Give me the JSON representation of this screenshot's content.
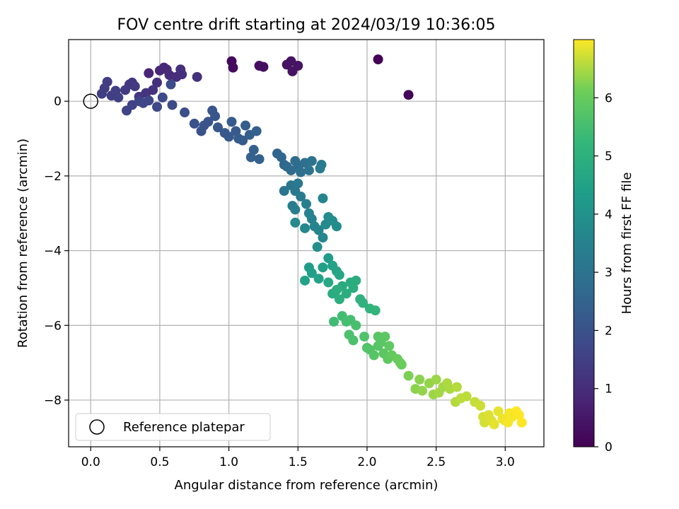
{
  "chart_data": {
    "type": "scatter",
    "title": "FOV centre drift starting at 2024/03/19 10:36:05",
    "xlabel": "Angular distance from reference (arcmin)",
    "ylabel": "Rotation from reference (arcmin)",
    "xlim": [
      -0.16,
      3.28
    ],
    "ylim": [
      -9.25,
      1.65
    ],
    "x_ticks": [
      0.0,
      0.5,
      1.0,
      1.5,
      2.0,
      2.5,
      3.0
    ],
    "x_tick_labels": [
      "0.0",
      "0.5",
      "1.0",
      "1.5",
      "2.0",
      "2.5",
      "3.0"
    ],
    "y_ticks": [
      0,
      -2,
      -4,
      -6,
      -8
    ],
    "y_tick_labels": [
      "0",
      "−2",
      "−4",
      "−6",
      "−8"
    ],
    "grid": true,
    "colormap": "viridis",
    "colorbar": {
      "label": "Hours from first FF file",
      "range": [
        0,
        7.0
      ],
      "ticks": [
        0,
        1,
        2,
        3,
        4,
        5,
        6
      ],
      "tick_labels": [
        "0",
        "1",
        "2",
        "3",
        "4",
        "5",
        "6"
      ]
    },
    "legend": {
      "position": "lower left",
      "entries": [
        {
          "label": "Reference platepar",
          "marker": "open circle"
        }
      ]
    },
    "reference_point": {
      "x": 0.0,
      "y": 0.0
    },
    "points": [
      {
        "x": 2.08,
        "y": 1.12,
        "h": 0.05
      },
      {
        "x": 2.3,
        "y": 0.17,
        "h": 0.1
      },
      {
        "x": 1.02,
        "y": 1.07,
        "h": 0.2
      },
      {
        "x": 1.03,
        "y": 0.9,
        "h": 0.25
      },
      {
        "x": 1.22,
        "y": 0.95,
        "h": 0.3
      },
      {
        "x": 1.25,
        "y": 0.92,
        "h": 0.32
      },
      {
        "x": 1.42,
        "y": 0.98,
        "h": 0.35
      },
      {
        "x": 1.45,
        "y": 1.07,
        "h": 0.38
      },
      {
        "x": 1.46,
        "y": 0.8,
        "h": 0.4
      },
      {
        "x": 1.5,
        "y": 0.95,
        "h": 0.42
      },
      {
        "x": 0.42,
        "y": 0.75,
        "h": 0.8
      },
      {
        "x": 0.5,
        "y": 0.82,
        "h": 0.85
      },
      {
        "x": 0.53,
        "y": 0.9,
        "h": 0.9
      },
      {
        "x": 0.55,
        "y": 0.85,
        "h": 0.9
      },
      {
        "x": 0.57,
        "y": 0.7,
        "h": 0.95
      },
      {
        "x": 0.62,
        "y": 0.65,
        "h": 1.0
      },
      {
        "x": 0.65,
        "y": 0.85,
        "h": 1.05
      },
      {
        "x": 0.66,
        "y": 0.72,
        "h": 1.1
      },
      {
        "x": 0.77,
        "y": 0.65,
        "h": 1.15
      },
      {
        "x": 0.48,
        "y": 0.5,
        "h": 1.1
      },
      {
        "x": 0.45,
        "y": 0.3,
        "h": 1.2
      },
      {
        "x": 0.4,
        "y": 0.22,
        "h": 1.2
      },
      {
        "x": 0.35,
        "y": 0.12,
        "h": 1.25
      },
      {
        "x": 0.3,
        "y": 0.5,
        "h": 1.3
      },
      {
        "x": 0.28,
        "y": 0.45,
        "h": 1.3
      },
      {
        "x": 0.32,
        "y": 0.4,
        "h": 1.35
      },
      {
        "x": 0.25,
        "y": 0.3,
        "h": 1.35
      },
      {
        "x": 0.12,
        "y": 0.52,
        "h": 1.4
      },
      {
        "x": 0.1,
        "y": 0.35,
        "h": 1.4
      },
      {
        "x": 0.08,
        "y": 0.2,
        "h": 1.45
      },
      {
        "x": 0.15,
        "y": 0.15,
        "h": 1.45
      },
      {
        "x": 0.2,
        "y": 0.1,
        "h": 1.5
      },
      {
        "x": 0.18,
        "y": 0.28,
        "h": 1.5
      },
      {
        "x": 0.26,
        "y": -0.25,
        "h": 1.6
      },
      {
        "x": 0.3,
        "y": -0.1,
        "h": 1.6
      },
      {
        "x": 0.35,
        "y": 0.0,
        "h": 1.65
      },
      {
        "x": 0.38,
        "y": -0.05,
        "h": 1.7
      },
      {
        "x": 0.42,
        "y": 0.02,
        "h": 1.7
      },
      {
        "x": 0.48,
        "y": -0.15,
        "h": 1.75
      },
      {
        "x": 0.52,
        "y": 0.1,
        "h": 1.75
      },
      {
        "x": 0.59,
        "y": -0.1,
        "h": 1.8
      },
      {
        "x": 0.58,
        "y": 0.45,
        "h": 1.8
      },
      {
        "x": 0.68,
        "y": -0.3,
        "h": 1.9
      },
      {
        "x": 0.75,
        "y": -0.6,
        "h": 2.0
      },
      {
        "x": 0.8,
        "y": -0.8,
        "h": 2.0
      },
      {
        "x": 0.82,
        "y": -0.65,
        "h": 2.05
      },
      {
        "x": 0.85,
        "y": -0.55,
        "h": 2.05
      },
      {
        "x": 0.88,
        "y": -0.25,
        "h": 2.1
      },
      {
        "x": 0.9,
        "y": -0.4,
        "h": 2.1
      },
      {
        "x": 0.92,
        "y": -0.7,
        "h": 2.15
      },
      {
        "x": 0.97,
        "y": -0.85,
        "h": 2.2
      },
      {
        "x": 1.0,
        "y": -0.95,
        "h": 2.2
      },
      {
        "x": 1.02,
        "y": -0.55,
        "h": 2.25
      },
      {
        "x": 1.05,
        "y": -0.8,
        "h": 2.25
      },
      {
        "x": 1.07,
        "y": -1.0,
        "h": 2.3
      },
      {
        "x": 1.1,
        "y": -1.05,
        "h": 2.3
      },
      {
        "x": 1.12,
        "y": -0.65,
        "h": 2.35
      },
      {
        "x": 1.15,
        "y": -0.9,
        "h": 2.35
      },
      {
        "x": 1.18,
        "y": -1.3,
        "h": 2.4
      },
      {
        "x": 1.2,
        "y": -0.8,
        "h": 2.4
      },
      {
        "x": 1.22,
        "y": -1.55,
        "h": 2.45
      },
      {
        "x": 1.16,
        "y": -1.5,
        "h": 2.45
      },
      {
        "x": 1.35,
        "y": -1.4,
        "h": 2.55
      },
      {
        "x": 1.38,
        "y": -1.5,
        "h": 2.6
      },
      {
        "x": 1.4,
        "y": -1.7,
        "h": 2.65
      },
      {
        "x": 1.42,
        "y": -1.75,
        "h": 2.7
      },
      {
        "x": 1.45,
        "y": -1.85,
        "h": 2.75
      },
      {
        "x": 1.48,
        "y": -1.6,
        "h": 2.8
      },
      {
        "x": 1.5,
        "y": -1.75,
        "h": 2.8
      },
      {
        "x": 1.52,
        "y": -1.9,
        "h": 2.85
      },
      {
        "x": 1.55,
        "y": -1.65,
        "h": 2.9
      },
      {
        "x": 1.58,
        "y": -1.85,
        "h": 2.95
      },
      {
        "x": 1.6,
        "y": -1.6,
        "h": 3.0
      },
      {
        "x": 1.4,
        "y": -2.4,
        "h": 3.05
      },
      {
        "x": 1.45,
        "y": -2.25,
        "h": 3.1
      },
      {
        "x": 1.48,
        "y": -2.4,
        "h": 3.15
      },
      {
        "x": 1.5,
        "y": -2.2,
        "h": 3.2
      },
      {
        "x": 1.52,
        "y": -2.55,
        "h": 3.25
      },
      {
        "x": 1.46,
        "y": -2.8,
        "h": 3.3
      },
      {
        "x": 1.48,
        "y": -2.9,
        "h": 3.35
      },
      {
        "x": 1.56,
        "y": -2.75,
        "h": 3.4
      },
      {
        "x": 1.58,
        "y": -3.0,
        "h": 3.45
      },
      {
        "x": 1.6,
        "y": -3.15,
        "h": 3.5
      },
      {
        "x": 1.62,
        "y": -3.35,
        "h": 3.55
      },
      {
        "x": 1.65,
        "y": -3.45,
        "h": 3.6
      },
      {
        "x": 1.68,
        "y": -3.65,
        "h": 3.65
      },
      {
        "x": 1.48,
        "y": -3.25,
        "h": 3.7
      },
      {
        "x": 1.55,
        "y": -3.4,
        "h": 3.7
      },
      {
        "x": 1.7,
        "y": -3.3,
        "h": 3.75
      },
      {
        "x": 1.72,
        "y": -3.1,
        "h": 3.8
      },
      {
        "x": 1.75,
        "y": -3.2,
        "h": 3.8
      },
      {
        "x": 1.78,
        "y": -3.35,
        "h": 3.85
      },
      {
        "x": 1.68,
        "y": -2.6,
        "h": 3.6
      },
      {
        "x": 1.67,
        "y": -1.7,
        "h": 3.2
      },
      {
        "x": 1.66,
        "y": -1.8,
        "h": 3.25
      },
      {
        "x": 1.64,
        "y": -3.9,
        "h": 3.9
      },
      {
        "x": 1.58,
        "y": -4.45,
        "h": 4.3
      },
      {
        "x": 1.6,
        "y": -4.6,
        "h": 4.4
      },
      {
        "x": 1.55,
        "y": -4.8,
        "h": 4.5
      },
      {
        "x": 1.65,
        "y": -4.75,
        "h": 4.5
      },
      {
        "x": 1.68,
        "y": -4.45,
        "h": 4.45
      },
      {
        "x": 1.72,
        "y": -4.2,
        "h": 4.35
      },
      {
        "x": 1.75,
        "y": -4.4,
        "h": 4.5
      },
      {
        "x": 1.78,
        "y": -4.55,
        "h": 4.6
      },
      {
        "x": 1.8,
        "y": -4.65,
        "h": 4.65
      },
      {
        "x": 1.82,
        "y": -4.95,
        "h": 4.8
      },
      {
        "x": 1.85,
        "y": -5.15,
        "h": 4.9
      },
      {
        "x": 1.88,
        "y": -4.85,
        "h": 4.85
      },
      {
        "x": 1.9,
        "y": -5.0,
        "h": 4.9
      },
      {
        "x": 1.92,
        "y": -4.8,
        "h": 4.9
      },
      {
        "x": 1.95,
        "y": -5.3,
        "h": 5.0
      },
      {
        "x": 1.97,
        "y": -5.4,
        "h": 5.05
      },
      {
        "x": 2.02,
        "y": -5.55,
        "h": 5.1
      },
      {
        "x": 2.06,
        "y": -5.6,
        "h": 5.15
      },
      {
        "x": 1.72,
        "y": -4.85,
        "h": 4.7
      },
      {
        "x": 1.75,
        "y": -5.15,
        "h": 4.85
      },
      {
        "x": 1.78,
        "y": -5.05,
        "h": 4.9
      },
      {
        "x": 1.8,
        "y": -5.3,
        "h": 4.95
      },
      {
        "x": 1.76,
        "y": -5.9,
        "h": 5.4
      },
      {
        "x": 1.82,
        "y": -5.75,
        "h": 5.45
      },
      {
        "x": 1.85,
        "y": -5.9,
        "h": 5.5
      },
      {
        "x": 1.88,
        "y": -5.85,
        "h": 5.5
      },
      {
        "x": 1.92,
        "y": -6.0,
        "h": 5.55
      },
      {
        "x": 1.87,
        "y": -6.25,
        "h": 5.6
      },
      {
        "x": 1.9,
        "y": -6.4,
        "h": 5.6
      },
      {
        "x": 1.98,
        "y": -6.3,
        "h": 5.65
      },
      {
        "x": 2.0,
        "y": -6.6,
        "h": 5.7
      },
      {
        "x": 2.02,
        "y": -6.65,
        "h": 5.7
      },
      {
        "x": 2.05,
        "y": -6.8,
        "h": 5.75
      },
      {
        "x": 2.08,
        "y": -6.55,
        "h": 5.75
      },
      {
        "x": 2.1,
        "y": -6.45,
        "h": 5.8
      },
      {
        "x": 2.08,
        "y": -6.3,
        "h": 5.8
      },
      {
        "x": 2.12,
        "y": -6.75,
        "h": 5.85
      },
      {
        "x": 2.15,
        "y": -6.9,
        "h": 5.9
      },
      {
        "x": 2.13,
        "y": -6.3,
        "h": 5.85
      },
      {
        "x": 2.16,
        "y": -6.55,
        "h": 5.9
      },
      {
        "x": 2.18,
        "y": -6.8,
        "h": 5.95
      },
      {
        "x": 2.22,
        "y": -6.9,
        "h": 6.0
      },
      {
        "x": 2.25,
        "y": -7.05,
        "h": 6.05
      },
      {
        "x": 2.24,
        "y": -7.0,
        "h": 6.05
      },
      {
        "x": 2.3,
        "y": -7.35,
        "h": 6.2
      },
      {
        "x": 2.35,
        "y": -7.7,
        "h": 6.3
      },
      {
        "x": 2.38,
        "y": -7.45,
        "h": 6.3
      },
      {
        "x": 2.4,
        "y": -7.75,
        "h": 6.35
      },
      {
        "x": 2.45,
        "y": -7.55,
        "h": 6.35
      },
      {
        "x": 2.48,
        "y": -7.85,
        "h": 6.4
      },
      {
        "x": 2.5,
        "y": -7.45,
        "h": 6.4
      },
      {
        "x": 2.52,
        "y": -7.8,
        "h": 6.45
      },
      {
        "x": 2.55,
        "y": -7.65,
        "h": 6.45
      },
      {
        "x": 2.58,
        "y": -7.55,
        "h": 6.5
      },
      {
        "x": 2.6,
        "y": -7.7,
        "h": 6.5
      },
      {
        "x": 2.64,
        "y": -8.05,
        "h": 6.55
      },
      {
        "x": 2.65,
        "y": -7.65,
        "h": 6.55
      },
      {
        "x": 2.68,
        "y": -7.95,
        "h": 6.6
      },
      {
        "x": 2.72,
        "y": -7.9,
        "h": 6.6
      },
      {
        "x": 2.78,
        "y": -8.05,
        "h": 6.65
      },
      {
        "x": 2.82,
        "y": -8.15,
        "h": 6.7
      },
      {
        "x": 2.84,
        "y": -8.45,
        "h": 6.75
      },
      {
        "x": 2.85,
        "y": -8.6,
        "h": 6.75
      },
      {
        "x": 2.88,
        "y": -8.4,
        "h": 6.8
      },
      {
        "x": 2.9,
        "y": -8.55,
        "h": 6.8
      },
      {
        "x": 2.92,
        "y": -8.65,
        "h": 6.85
      },
      {
        "x": 2.95,
        "y": -8.3,
        "h": 6.85
      },
      {
        "x": 2.98,
        "y": -8.5,
        "h": 6.9
      },
      {
        "x": 3.0,
        "y": -8.55,
        "h": 6.9
      },
      {
        "x": 3.02,
        "y": -8.6,
        "h": 6.95
      },
      {
        "x": 3.03,
        "y": -8.35,
        "h": 6.95
      },
      {
        "x": 3.05,
        "y": -8.45,
        "h": 6.95
      },
      {
        "x": 3.08,
        "y": -8.3,
        "h": 7.0
      },
      {
        "x": 3.1,
        "y": -8.4,
        "h": 7.0
      },
      {
        "x": 3.12,
        "y": -8.6,
        "h": 7.0
      }
    ]
  }
}
